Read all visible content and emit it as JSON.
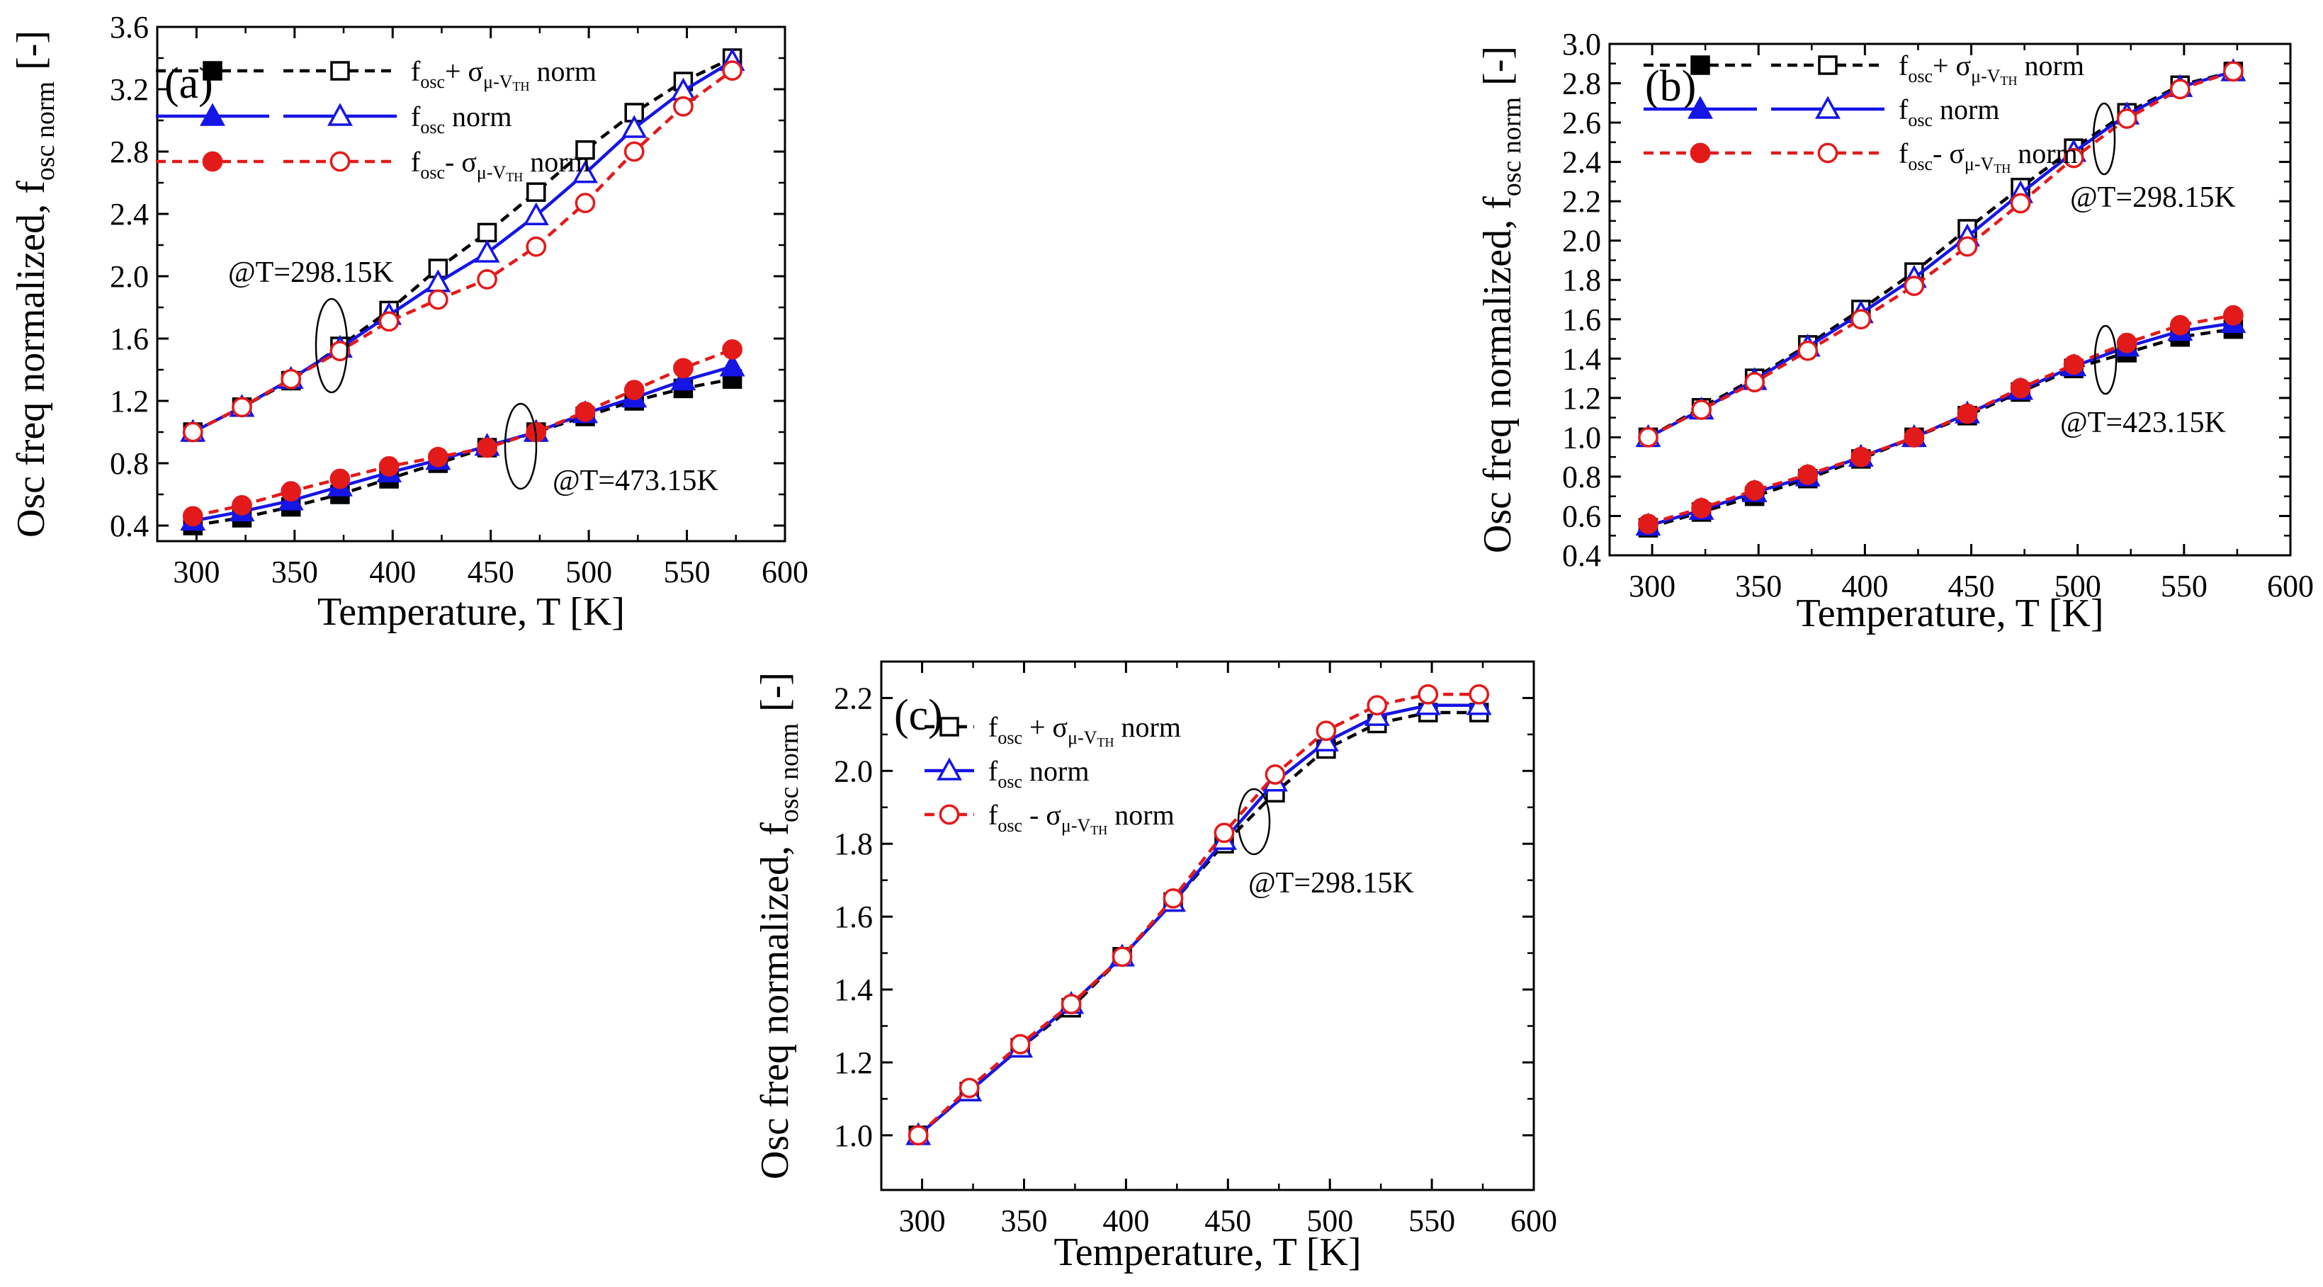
{
  "chart_data": [
    {
      "type": "line",
      "panel": "(a)",
      "xlabel": "Temperature, T [K]",
      "ylabel": "Osc freq normalized, f",
      "ylabel_sub": "osc norm",
      "ylabel_unit": "[-]",
      "xlim": [
        280,
        600
      ],
      "ylim": [
        0.3,
        3.6
      ],
      "xticks": [
        "300",
        "350",
        "400",
        "450",
        "500",
        "550",
        "600"
      ],
      "yticks": [
        "0.4",
        "0.8",
        "1.2",
        "1.6",
        "2.0",
        "2.4",
        "2.8",
        "3.2",
        "3.6"
      ],
      "legend_position": "top-left",
      "legend": [
        {
          "pre": "f",
          "sub": "osc",
          "mid": "+ σ",
          "sub2": "μ-V",
          "sub3": "TH",
          "post": " norm"
        },
        {
          "pre": "f",
          "sub": "osc",
          "mid": "",
          "sub2": "",
          "sub3": "",
          "post": " norm"
        },
        {
          "pre": "f",
          "sub": "osc",
          "mid": "- σ",
          "sub2": "μ-V",
          "sub3": "TH",
          "post": " norm"
        }
      ],
      "x": [
        298.15,
        323.15,
        348.15,
        373.15,
        398.15,
        423.15,
        448.15,
        473.15,
        498.15,
        523.15,
        548.15,
        573.15
      ],
      "series": [
        {
          "name": "fosc + σ norm @T=298.15K",
          "color": "#000000",
          "dash": true,
          "marker": "square",
          "filled": false,
          "values": [
            1.0,
            1.16,
            1.33,
            1.55,
            1.78,
            2.05,
            2.28,
            2.54,
            2.81,
            3.05,
            3.25,
            3.4
          ]
        },
        {
          "name": "fosc norm @T=298.15K",
          "color": "#1515e6",
          "dash": false,
          "marker": "triangle",
          "filled": false,
          "values": [
            1.0,
            1.16,
            1.34,
            1.54,
            1.75,
            1.96,
            2.15,
            2.39,
            2.66,
            2.95,
            3.19,
            3.38
          ]
        },
        {
          "name": "fosc - σ norm @T=298.15K",
          "color": "#e31a1a",
          "dash": true,
          "marker": "circle",
          "filled": false,
          "values": [
            1.0,
            1.16,
            1.34,
            1.52,
            1.71,
            1.85,
            1.98,
            2.19,
            2.47,
            2.8,
            3.09,
            3.32
          ]
        },
        {
          "name": "fosc + σ norm @T=473.15K",
          "color": "#000000",
          "dash": true,
          "marker": "square",
          "filled": true,
          "values": [
            0.4,
            0.45,
            0.52,
            0.6,
            0.7,
            0.8,
            0.9,
            1.0,
            1.1,
            1.2,
            1.28,
            1.34
          ]
        },
        {
          "name": "fosc norm @T=473.15K",
          "color": "#1515e6",
          "dash": false,
          "marker": "triangle",
          "filled": true,
          "values": [
            0.43,
            0.49,
            0.56,
            0.65,
            0.74,
            0.82,
            0.91,
            1.0,
            1.12,
            1.22,
            1.33,
            1.42
          ]
        },
        {
          "name": "fosc - σ norm @T=473.15K",
          "color": "#e31a1a",
          "dash": true,
          "marker": "circle",
          "filled": true,
          "values": [
            0.46,
            0.53,
            0.62,
            0.7,
            0.78,
            0.84,
            0.9,
            1.0,
            1.13,
            1.27,
            1.41,
            1.53
          ]
        }
      ],
      "annotations": [
        {
          "text": "@T=298.15K",
          "x": 373,
          "y": 1.55
        },
        {
          "text": "@T=473.15K",
          "x": 473,
          "y": 1.0
        }
      ]
    },
    {
      "type": "line",
      "panel": "(b)",
      "xlabel": "Temperature, T [K]",
      "ylabel": "Osc freq normalized, f",
      "ylabel_sub": "osc norm",
      "ylabel_unit": "[-]",
      "xlim": [
        280,
        600
      ],
      "ylim": [
        0.4,
        3.0
      ],
      "xticks": [
        "300",
        "350",
        "400",
        "450",
        "500",
        "550",
        "600"
      ],
      "yticks": [
        "0.4",
        "0.6",
        "0.8",
        "1.0",
        "1.2",
        "1.4",
        "1.6",
        "1.8",
        "2.0",
        "2.2",
        "2.4",
        "2.6",
        "2.8",
        "3.0"
      ],
      "legend_position": "top-left",
      "legend": [
        {
          "pre": "f",
          "sub": "osc",
          "mid": "+ σ",
          "sub2": "μ-V",
          "sub3": "TH",
          "post": " norm"
        },
        {
          "pre": "f",
          "sub": "osc",
          "mid": "",
          "sub2": "",
          "sub3": "",
          "post": " norm"
        },
        {
          "pre": "f",
          "sub": "osc",
          "mid": "- σ",
          "sub2": "μ-V",
          "sub3": "TH",
          "post": " norm"
        }
      ],
      "x": [
        298.15,
        323.15,
        348.15,
        373.15,
        398.15,
        423.15,
        448.15,
        473.15,
        498.15,
        523.15,
        548.15,
        573.15
      ],
      "series": [
        {
          "name": "fosc + σ norm @T=298.15K",
          "color": "#000000",
          "dash": true,
          "marker": "square",
          "filled": false,
          "values": [
            1.0,
            1.15,
            1.3,
            1.47,
            1.65,
            1.84,
            2.06,
            2.27,
            2.47,
            2.65,
            2.79,
            2.86
          ]
        },
        {
          "name": "fosc norm @T=298.15K",
          "color": "#1515e6",
          "dash": false,
          "marker": "triangle",
          "filled": false,
          "values": [
            1.0,
            1.14,
            1.29,
            1.46,
            1.63,
            1.81,
            2.02,
            2.24,
            2.45,
            2.64,
            2.78,
            2.86
          ]
        },
        {
          "name": "fosc - σ norm @T=298.15K",
          "color": "#e31a1a",
          "dash": true,
          "marker": "circle",
          "filled": false,
          "values": [
            1.0,
            1.14,
            1.28,
            1.44,
            1.6,
            1.77,
            1.97,
            2.19,
            2.42,
            2.62,
            2.77,
            2.86
          ]
        },
        {
          "name": "fosc + σ norm @T=423.15K",
          "color": "#000000",
          "dash": true,
          "marker": "square",
          "filled": true,
          "values": [
            0.54,
            0.62,
            0.7,
            0.79,
            0.89,
            1.0,
            1.11,
            1.23,
            1.35,
            1.43,
            1.51,
            1.55
          ]
        },
        {
          "name": "fosc norm @T=423.15K",
          "color": "#1515e6",
          "dash": false,
          "marker": "triangle",
          "filled": true,
          "values": [
            0.55,
            0.63,
            0.72,
            0.8,
            0.9,
            1.0,
            1.12,
            1.24,
            1.36,
            1.46,
            1.54,
            1.58
          ]
        },
        {
          "name": "fosc - σ norm @T=423.15K",
          "color": "#e31a1a",
          "dash": true,
          "marker": "circle",
          "filled": true,
          "values": [
            0.56,
            0.64,
            0.73,
            0.81,
            0.9,
            1.0,
            1.12,
            1.25,
            1.37,
            1.48,
            1.57,
            1.62
          ]
        }
      ],
      "annotations": [
        {
          "text": "@T=298.15K",
          "x": 510,
          "y": 2.55
        },
        {
          "text": "@T=423.15K",
          "x": 510,
          "y": 1.45
        }
      ]
    },
    {
      "type": "line",
      "panel": "(c)",
      "xlabel": "Temperature, T [K]",
      "ylabel": "Osc freq normalized, f",
      "ylabel_sub": "osc norm",
      "ylabel_unit": "[-]",
      "xlim": [
        280,
        600
      ],
      "ylim": [
        0.85,
        2.3
      ],
      "xticks": [
        "300",
        "350",
        "400",
        "450",
        "500",
        "550",
        "600"
      ],
      "yticks": [
        "1.0",
        "1.2",
        "1.4",
        "1.6",
        "1.8",
        "2.0",
        "2.2"
      ],
      "legend_position": "top-left",
      "legend": [
        {
          "pre": "f",
          "sub": "osc",
          "mid": " + σ",
          "sub2": "μ-V",
          "sub3": "TH",
          "post": " norm"
        },
        {
          "pre": "f",
          "sub": "osc",
          "mid": "",
          "sub2": "",
          "sub3": "",
          "post": " norm"
        },
        {
          "pre": "f",
          "sub": "osc",
          "mid": " - σ",
          "sub2": "μ-V",
          "sub3": "TH",
          "post": " norm"
        }
      ],
      "x": [
        298.15,
        323.15,
        348.15,
        373.15,
        398.15,
        423.15,
        448.15,
        473.15,
        498.15,
        523.15,
        548.15,
        573.15
      ],
      "series": [
        {
          "name": "fosc + σ norm @T=298.15K",
          "color": "#000000",
          "dash": true,
          "marker": "square",
          "filled": false,
          "values": [
            1.0,
            1.12,
            1.24,
            1.35,
            1.49,
            1.64,
            1.8,
            1.94,
            2.06,
            2.13,
            2.16,
            2.16
          ]
        },
        {
          "name": "fosc norm @T=298.15K",
          "color": "#1515e6",
          "dash": false,
          "marker": "triangle",
          "filled": false,
          "values": [
            1.0,
            1.12,
            1.24,
            1.36,
            1.49,
            1.64,
            1.81,
            1.97,
            2.08,
            2.15,
            2.18,
            2.18
          ]
        },
        {
          "name": "fosc - σ norm @T=298.15K",
          "color": "#e31a1a",
          "dash": true,
          "marker": "circle",
          "filled": false,
          "values": [
            1.0,
            1.13,
            1.25,
            1.36,
            1.49,
            1.65,
            1.83,
            1.99,
            2.11,
            2.18,
            2.21,
            2.21
          ]
        }
      ],
      "annotations": [
        {
          "text": "@T=298.15K",
          "x": 462,
          "y": 1.9
        }
      ]
    }
  ]
}
